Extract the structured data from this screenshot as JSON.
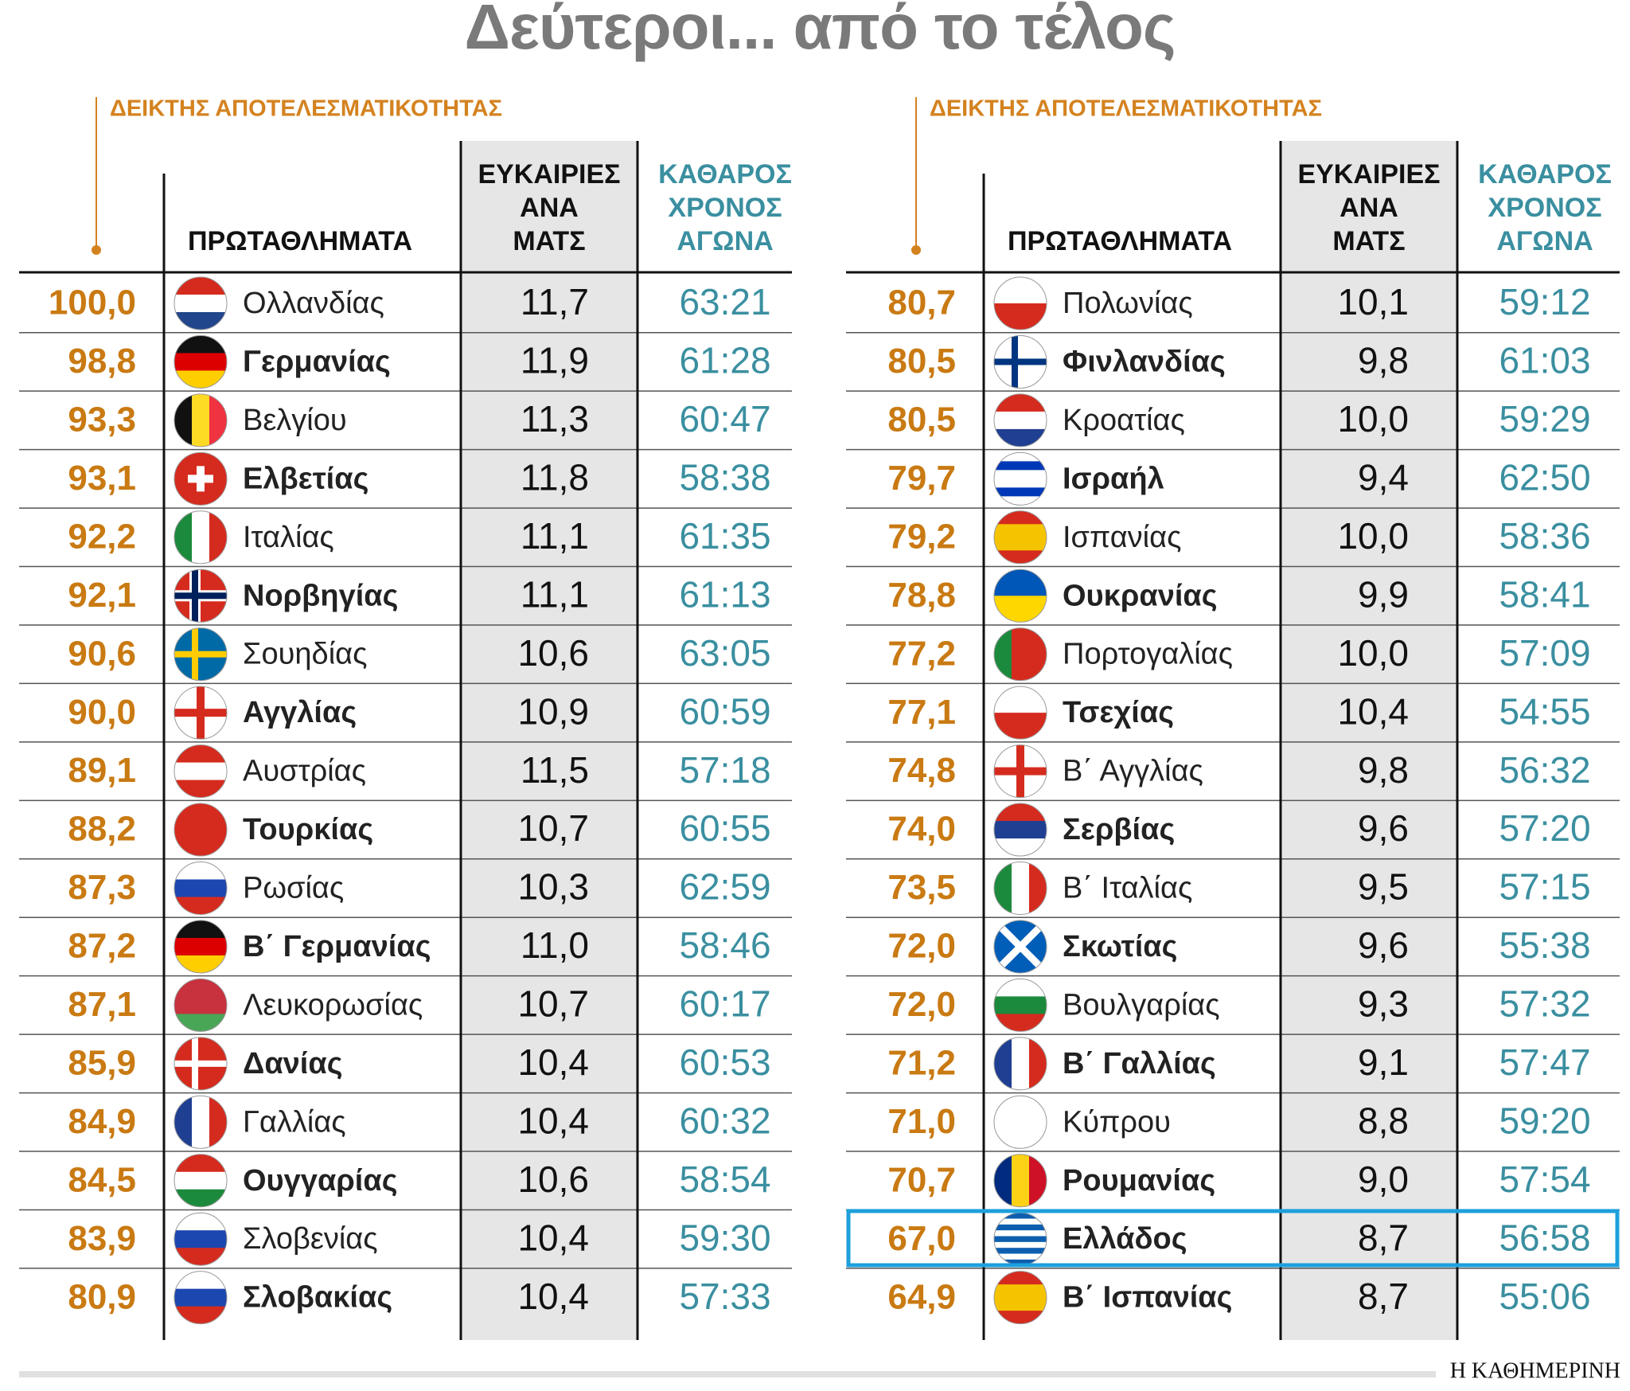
{
  "title": "Δεύτεροι... από το τέλος",
  "tables": [
    {
      "index_label": "ΔΕΙΚΤΗΣ ΑΠΟΤΕΛΕΣΜΑΤΙΚΟΤΗΤΑΣ",
      "columns": [
        "ΠΡΩΤΑΘΛΗΜΑΤΑ",
        [
          "ΕΥΚΑΙΡΙΕΣ",
          "ΑΝΑ",
          "ΜΑΤΣ"
        ],
        [
          "ΚΑΘΑΡΟΣ",
          "ΧΡΟΝΟΣ",
          "ΑΓΩΝΑ"
        ]
      ],
      "rows": [
        [
          "100,0",
          "Ολλανδίας",
          "11,7",
          "63:21"
        ],
        [
          "98,8",
          "Γερμανίας",
          "11,9",
          "61:28"
        ],
        [
          "93,3",
          "Βελγίου",
          "11,3",
          "60:47"
        ],
        [
          "93,1",
          "Ελβετίας",
          "11,8",
          "58:38"
        ],
        [
          "92,2",
          "Ιταλίας",
          "11,1",
          "61:35"
        ],
        [
          "92,1",
          "Νορβηγίας",
          "11,1",
          "61:13"
        ],
        [
          "90,6",
          "Σουηδίας",
          "10,6",
          "63:05"
        ],
        [
          "90,0",
          "Αγγλίας",
          "10,9",
          "60:59"
        ],
        [
          "89,1",
          "Αυστρίας",
          "11,5",
          "57:18"
        ],
        [
          "88,2",
          "Τουρκίας",
          "10,7",
          "60:55"
        ],
        [
          "87,3",
          "Ρωσίας",
          "10,3",
          "62:59"
        ],
        [
          "87,2",
          "Β΄ Γερμανίας",
          "11,0",
          "58:46"
        ],
        [
          "87,1",
          "Λευκορωσίας",
          "10,7",
          "60:17"
        ],
        [
          "85,9",
          "Δανίας",
          "10,4",
          "60:53"
        ],
        [
          "84,9",
          "Γαλλίας",
          "10,4",
          "60:32"
        ],
        [
          "84,5",
          "Ουγγαρίας",
          "10,6",
          "58:54"
        ],
        [
          "83,9",
          "Σλοβενίας",
          "10,4",
          "59:30"
        ],
        [
          "80,9",
          "Σλοβακίας",
          "10,4",
          "57:33"
        ]
      ]
    },
    {
      "index_label": "ΔΕΙΚΤΗΣ ΑΠΟΤΕΛΕΣΜΑΤΙΚΟΤΗΤΑΣ",
      "columns": [
        "ΠΡΩΤΑΘΛΗΜΑΤΑ",
        [
          "ΕΥΚΑΙΡΙΕΣ",
          "ΑΝΑ",
          "ΜΑΤΣ"
        ],
        [
          "ΚΑΘΑΡΟΣ",
          "ΧΡΟΝΟΣ",
          "ΑΓΩΝΑ"
        ]
      ],
      "rows": [
        [
          "80,7",
          "Πολωνίας",
          "10,1",
          "59:12"
        ],
        [
          "80,5",
          "Φινλανδίας",
          "9,8",
          "61:03"
        ],
        [
          "80,5",
          "Κροατίας",
          "10,0",
          "59:29"
        ],
        [
          "79,7",
          "Ισραήλ",
          "9,4",
          "62:50"
        ],
        [
          "79,2",
          "Ισπανίας",
          "10,0",
          "58:36"
        ],
        [
          "78,8",
          "Ουκρανίας",
          "9,9",
          "58:41"
        ],
        [
          "77,2",
          "Πορτογαλίας",
          "10,0",
          "57:09"
        ],
        [
          "77,1",
          "Τσεχίας",
          "10,4",
          "54:55"
        ],
        [
          "74,8",
          "Β΄ Αγγλίας",
          "9,8",
          "56:32"
        ],
        [
          "74,0",
          "Σερβίας",
          "9,6",
          "57:20"
        ],
        [
          "73,5",
          "Β΄ Ιταλίας",
          "9,5",
          "57:15"
        ],
        [
          "72,0",
          "Σκωτίας",
          "9,6",
          "55:38"
        ],
        [
          "72,0",
          "Βουλγαρίας",
          "9,3",
          "57:32"
        ],
        [
          "71,2",
          "Β΄ Γαλλίας",
          "9,1",
          "57:47"
        ],
        [
          "71,0",
          "Κύπρου",
          "8,8",
          "59:20"
        ],
        [
          "70,7",
          "Ρουμανίας",
          "9,0",
          "57:54"
        ],
        [
          "67,0",
          "Ελλάδος",
          "8,7",
          "56:58"
        ],
        [
          "64,9",
          "Β΄ Ισπανίας",
          "8,7",
          "55:06"
        ]
      ]
    }
  ],
  "source": "Η ΚΑΘΗΜΕΡΙΝΗ"
}
